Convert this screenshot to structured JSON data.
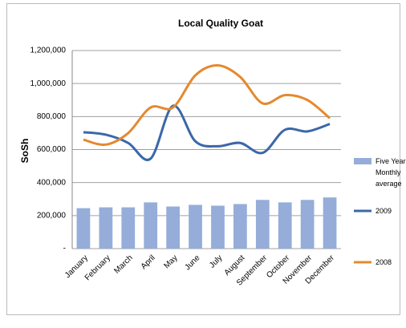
{
  "chart_data": {
    "type": "bar-line",
    "title": "Local Quality Goat",
    "y_label": "SoSh",
    "categories": [
      "January",
      "February",
      "March",
      "April",
      "May",
      "June",
      "July",
      "August",
      "September",
      "October",
      "November",
      "December"
    ],
    "series": [
      {
        "name": "Five Year Monthly average",
        "type": "bar",
        "color": "#95add8",
        "values": [
          245000,
          250000,
          250000,
          280000,
          255000,
          265000,
          260000,
          270000,
          295000,
          280000,
          295000,
          310000
        ]
      },
      {
        "name": "2009",
        "type": "line",
        "color": "#3a68a8",
        "values": [
          705000,
          690000,
          640000,
          545000,
          865000,
          650000,
          620000,
          640000,
          580000,
          720000,
          710000,
          755000
        ]
      },
      {
        "name": "2008",
        "type": "line",
        "color": "#e4892e",
        "values": [
          660000,
          630000,
          700000,
          855000,
          855000,
          1050000,
          1110000,
          1040000,
          880000,
          930000,
          900000,
          790000
        ]
      }
    ],
    "ylim": [
      0,
      1200000
    ],
    "yticks": [
      {
        "value": 0,
        "label": "-"
      },
      {
        "value": 200000,
        "label": "200,000"
      },
      {
        "value": 400000,
        "label": "400,000"
      },
      {
        "value": 600000,
        "label": "600,000"
      },
      {
        "value": 800000,
        "label": "800,000"
      },
      {
        "value": 1000000,
        "label": "1,000,000"
      },
      {
        "value": 1200000,
        "label": "1,200,000"
      }
    ],
    "grid": true,
    "legend": "right"
  }
}
